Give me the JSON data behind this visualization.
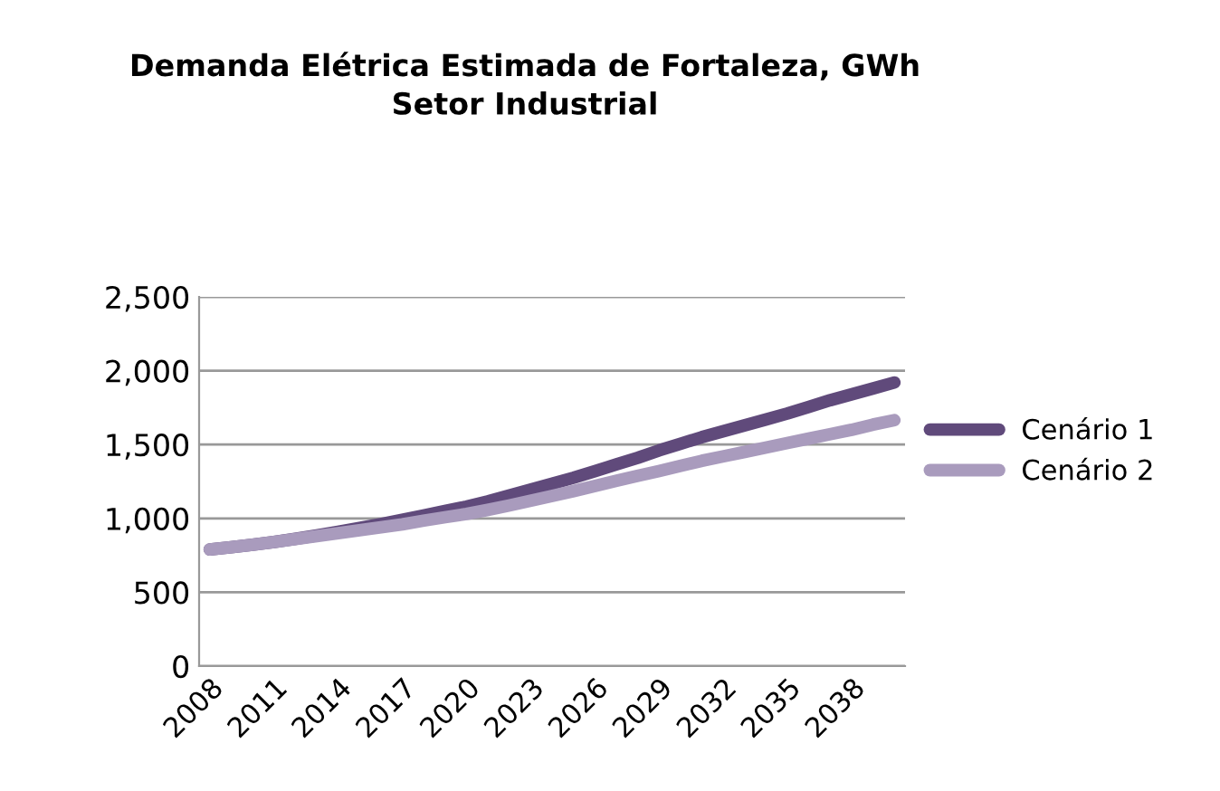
{
  "chart_data": {
    "type": "line",
    "title": "Demanda Elétrica Estimada de Fortaleza, GWh\nSetor Industrial",
    "categories": [
      "2008",
      null,
      null,
      "2011",
      null,
      null,
      "2014",
      null,
      null,
      "2017",
      null,
      null,
      "2020",
      null,
      null,
      "2023",
      null,
      null,
      "2026",
      null,
      null,
      "2029",
      null,
      null,
      "2032",
      null,
      null,
      "2035",
      null,
      null,
      "2038",
      null,
      null
    ],
    "series": [
      {
        "name": "Cenário 1",
        "color": "#604a7b",
        "values": [
          790,
          805,
          822,
          840,
          862,
          885,
          910,
          935,
          962,
          990,
          1020,
          1050,
          1080,
          1115,
          1155,
          1195,
          1235,
          1275,
          1320,
          1365,
          1410,
          1460,
          1505,
          1550,
          1590,
          1630,
          1670,
          1710,
          1755,
          1800,
          1840,
          1880,
          1920
        ]
      },
      {
        "name": "Cenário 2",
        "color": "#a99bbd",
        "values": [
          790,
          805,
          822,
          840,
          860,
          880,
          900,
          920,
          940,
          960,
          985,
          1008,
          1030,
          1058,
          1088,
          1120,
          1152,
          1185,
          1220,
          1255,
          1288,
          1320,
          1355,
          1390,
          1420,
          1450,
          1480,
          1510,
          1540,
          1570,
          1600,
          1635,
          1665
        ]
      }
    ],
    "ylim": [
      0,
      2500
    ],
    "yticks": [
      {
        "value": 0,
        "label": "0"
      },
      {
        "value": 500,
        "label": "500"
      },
      {
        "value": 1000,
        "label": "1,000"
      },
      {
        "value": 1500,
        "label": "1,500"
      },
      {
        "value": 2000,
        "label": "2,000"
      },
      {
        "value": 2500,
        "label": "2,500"
      }
    ],
    "grid": "y",
    "legend": "right",
    "marker": "none",
    "line_style": "solid"
  }
}
